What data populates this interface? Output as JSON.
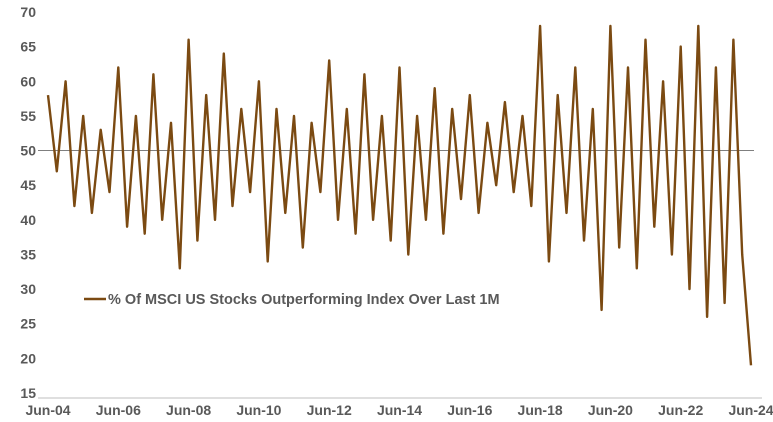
{
  "chart_data": {
    "type": "line",
    "title": "",
    "xlabel": "",
    "ylabel": "",
    "x_range": [
      "2004-06",
      "2024-06"
    ],
    "ylim": [
      15,
      70
    ],
    "yticks": [
      15,
      20,
      25,
      30,
      35,
      40,
      45,
      50,
      55,
      60,
      65,
      70
    ],
    "xticks": [
      "Jun-04",
      "Jun-06",
      "Jun-08",
      "Jun-10",
      "Jun-12",
      "Jun-14",
      "Jun-16",
      "Jun-18",
      "Jun-20",
      "Jun-22",
      "Jun-24"
    ],
    "reference_line": 50,
    "grid": false,
    "legend_position": "left",
    "colors": {
      "series": "#7b4a12",
      "reference": "#7f7f7f",
      "axis": "#bfbfbf",
      "text": "#595959"
    },
    "series": [
      {
        "name": "% Of MSCI US Stocks Outperforming Index Over Last 1M",
        "x": [
          "2004-06",
          "2004-09",
          "2004-12",
          "2005-03",
          "2005-06",
          "2005-09",
          "2005-12",
          "2006-03",
          "2006-06",
          "2006-09",
          "2006-12",
          "2007-03",
          "2007-06",
          "2007-09",
          "2007-12",
          "2008-03",
          "2008-06",
          "2008-09",
          "2008-12",
          "2009-03",
          "2009-06",
          "2009-09",
          "2009-12",
          "2010-03",
          "2010-06",
          "2010-09",
          "2010-12",
          "2011-03",
          "2011-06",
          "2011-09",
          "2011-12",
          "2012-03",
          "2012-06",
          "2012-09",
          "2012-12",
          "2013-03",
          "2013-06",
          "2013-09",
          "2013-12",
          "2014-03",
          "2014-06",
          "2014-09",
          "2014-12",
          "2015-03",
          "2015-06",
          "2015-09",
          "2015-12",
          "2016-03",
          "2016-06",
          "2016-09",
          "2016-12",
          "2017-03",
          "2017-06",
          "2017-09",
          "2017-12",
          "2018-03",
          "2018-06",
          "2018-09",
          "2018-12",
          "2019-03",
          "2019-06",
          "2019-09",
          "2019-12",
          "2020-03",
          "2020-06",
          "2020-09",
          "2020-12",
          "2021-03",
          "2021-06",
          "2021-09",
          "2021-12",
          "2022-03",
          "2022-06",
          "2022-09",
          "2022-12",
          "2023-03",
          "2023-06",
          "2023-09",
          "2023-12",
          "2024-03",
          "2024-06"
        ],
        "values": [
          58,
          47,
          60,
          42,
          55,
          41,
          53,
          44,
          62,
          39,
          55,
          38,
          61,
          40,
          54,
          33,
          66,
          37,
          58,
          40,
          64,
          42,
          56,
          44,
          60,
          34,
          56,
          41,
          55,
          36,
          54,
          44,
          63,
          40,
          56,
          38,
          61,
          40,
          55,
          37,
          62,
          35,
          55,
          40,
          59,
          38,
          56,
          43,
          58,
          41,
          54,
          45,
          57,
          44,
          55,
          42,
          68,
          34,
          58,
          41,
          62,
          37,
          56,
          27,
          68,
          36,
          62,
          33,
          66,
          39,
          60,
          35,
          65,
          30,
          68,
          26,
          62,
          28,
          66,
          35,
          19
        ]
      }
    ]
  }
}
